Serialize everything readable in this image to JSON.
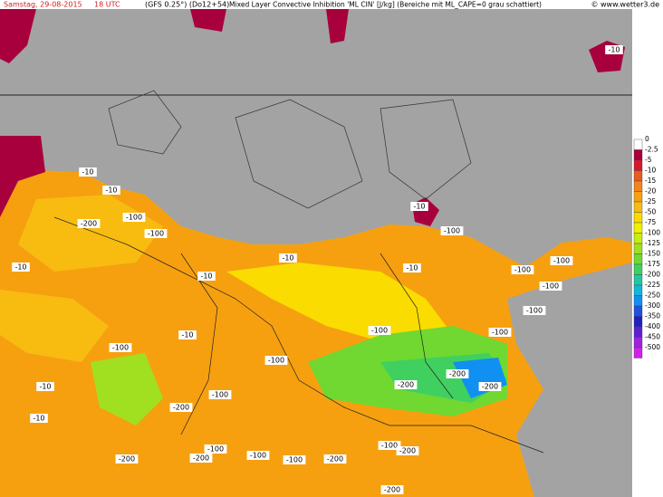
{
  "header": {
    "date": "Samstag, 29-08-2015",
    "time": "18 UTC",
    "model": "(GFS 0.25°) (Do12+54)",
    "title": "Mixed Layer Convective Inhibition 'ML CIN' [J/kg] (Bereiche mit ML_CAPE=0 grau schattiert)",
    "site": "© www.wetter3.de"
  },
  "legend": {
    "items": [
      {
        "label": "0",
        "color": "#ffffff"
      },
      {
        "label": "-2.5",
        "color": "#a8003c"
      },
      {
        "label": "-5",
        "color": "#d8182c"
      },
      {
        "label": "-10",
        "color": "#ec5a1e"
      },
      {
        "label": "-15",
        "color": "#f2841a"
      },
      {
        "label": "-20",
        "color": "#f6a010"
      },
      {
        "label": "-25",
        "color": "#f8bc10"
      },
      {
        "label": "-50",
        "color": "#fadc00"
      },
      {
        "label": "-75",
        "color": "#f0f000"
      },
      {
        "label": "-100",
        "color": "#c8ec10"
      },
      {
        "label": "-125",
        "color": "#a0e020"
      },
      {
        "label": "-150",
        "color": "#70d830"
      },
      {
        "label": "-175",
        "color": "#40d060"
      },
      {
        "label": "-200",
        "color": "#20c8a0"
      },
      {
        "label": "-225",
        "color": "#10b8d8"
      },
      {
        "label": "-250",
        "color": "#1090f0"
      },
      {
        "label": "-300",
        "color": "#2050e0"
      },
      {
        "label": "-350",
        "color": "#2020c0"
      },
      {
        "label": "-400",
        "color": "#6020d0"
      },
      {
        "label": "-450",
        "color": "#a020e0"
      },
      {
        "label": "-500",
        "color": "#d020e8"
      }
    ]
  },
  "map": {
    "labels": [
      "-10",
      "-10",
      "-10",
      "-10",
      "-10",
      "-10",
      "-10",
      "-10",
      "-10",
      "-10",
      "-10",
      "-100",
      "-200",
      "-100",
      "-100",
      "-100",
      "-100",
      "-100",
      "-100",
      "-100",
      "-100",
      "-100",
      "-100",
      "-100",
      "-100",
      "-100",
      "-100",
      "-100",
      "-200",
      "-200",
      "-200",
      "-200",
      "-200",
      "-200",
      "-200",
      "-200",
      "-200"
    ]
  }
}
